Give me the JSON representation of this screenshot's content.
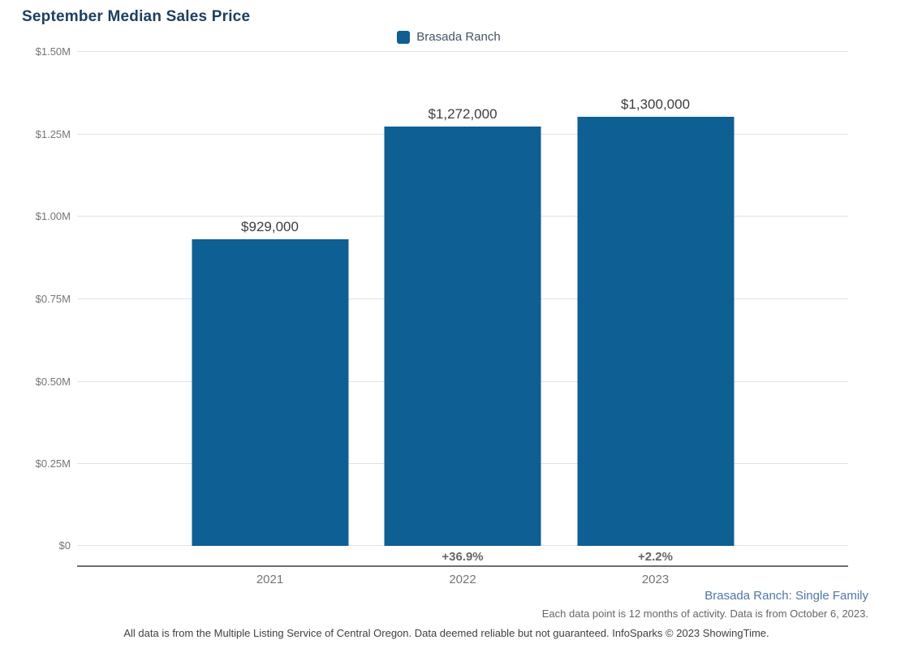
{
  "page": {
    "title": "September Median Sales Price",
    "footer_line1": "Brasada Ranch: Single Family",
    "footer_line2": "Each data point is 12 months of activity. Data is from October 6, 2023.",
    "footer_line3": "All data is from the Multiple Listing Service of Central Oregon. Data deemed reliable but not guaranteed. InfoSparks © 2023 ShowingTime."
  },
  "legend": {
    "label": "Brasada Ranch",
    "swatch_color": "#0e5f94"
  },
  "colors": {
    "bar": "#0e5f94",
    "title_text": "#1d3f63",
    "legend_text": "#44546a",
    "axis_text": "#757575",
    "value_label_text": "#3d3d3d",
    "pct_label_text": "#666666",
    "gridline": "#e2e2e2",
    "axis_line": "#6e6e6e",
    "footer_blue": "#4f77aa"
  },
  "chart_data": {
    "type": "bar",
    "title": "September Median Sales Price",
    "series": [
      {
        "name": "Brasada Ranch",
        "values": [
          929000,
          1272000,
          1300000
        ],
        "value_labels": [
          "$929,000",
          "$1,272,000",
          "$1,300,000"
        ],
        "pct_change_labels": [
          "",
          "+36.9%",
          "+2.2%"
        ]
      }
    ],
    "categories": [
      "2021",
      "2022",
      "2023"
    ],
    "xlabel": "",
    "ylabel": "",
    "ylim": [
      0,
      1500000
    ],
    "y_ticks": [
      0,
      250000,
      500000,
      750000,
      1000000,
      1250000,
      1500000
    ],
    "y_tick_labels": [
      "$0",
      "$0.25M",
      "$0.50M",
      "$0.75M",
      "$1.00M",
      "$1.25M",
      "$1.50M"
    ],
    "grid": true,
    "legend_position": "top-center",
    "bar_color": "#0e5f94"
  }
}
